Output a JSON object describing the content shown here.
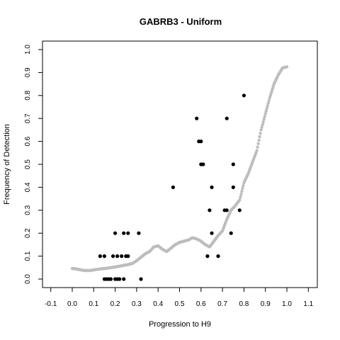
{
  "chart_data": {
    "type": "scatter",
    "title": "GABRB3 - Uniform",
    "xlabel": "Progression to H9",
    "ylabel": "Frequency of Detection",
    "xlim": [
      -0.1,
      1.1
    ],
    "ylim": [
      0.0,
      1.0
    ],
    "x_ticks": [
      "-0.1",
      "0.0",
      "0.1",
      "0.2",
      "0.3",
      "0.4",
      "0.5",
      "0.6",
      "0.7",
      "0.8",
      "0.9",
      "1.0",
      "1.1"
    ],
    "y_ticks": [
      "0.0",
      "0.1",
      "0.2",
      "0.3",
      "0.4",
      "0.5",
      "0.6",
      "0.7",
      "0.8",
      "0.9",
      "1.0"
    ],
    "grid": false,
    "series": [
      {
        "color": "#bdbdbd",
        "marker": "small-circle",
        "points": [
          [
            0.0,
            0.046
          ],
          [
            0.02,
            0.044
          ],
          [
            0.04,
            0.04
          ],
          [
            0.06,
            0.037
          ],
          [
            0.08,
            0.037
          ],
          [
            0.1,
            0.04
          ],
          [
            0.12,
            0.043
          ],
          [
            0.14,
            0.045
          ],
          [
            0.16,
            0.047
          ],
          [
            0.18,
            0.05
          ],
          [
            0.2,
            0.053
          ],
          [
            0.22,
            0.056
          ],
          [
            0.24,
            0.06
          ],
          [
            0.26,
            0.063
          ],
          [
            0.28,
            0.068
          ],
          [
            0.3,
            0.08
          ],
          [
            0.32,
            0.095
          ],
          [
            0.34,
            0.11
          ],
          [
            0.36,
            0.12
          ],
          [
            0.38,
            0.14
          ],
          [
            0.4,
            0.145
          ],
          [
            0.42,
            0.13
          ],
          [
            0.44,
            0.12
          ],
          [
            0.46,
            0.135
          ],
          [
            0.48,
            0.15
          ],
          [
            0.5,
            0.16
          ],
          [
            0.52,
            0.165
          ],
          [
            0.54,
            0.17
          ],
          [
            0.56,
            0.18
          ],
          [
            0.58,
            0.175
          ],
          [
            0.6,
            0.165
          ],
          [
            0.62,
            0.15
          ],
          [
            0.64,
            0.14
          ],
          [
            0.66,
            0.165
          ],
          [
            0.68,
            0.19
          ],
          [
            0.7,
            0.21
          ],
          [
            0.72,
            0.26
          ],
          [
            0.74,
            0.3
          ],
          [
            0.76,
            0.32
          ],
          [
            0.78,
            0.345
          ],
          [
            0.8,
            0.42
          ],
          [
            0.82,
            0.46
          ],
          [
            0.84,
            0.51
          ],
          [
            0.86,
            0.56
          ],
          [
            0.88,
            0.65
          ],
          [
            0.9,
            0.72
          ],
          [
            0.92,
            0.79
          ],
          [
            0.94,
            0.85
          ],
          [
            0.96,
            0.89
          ],
          [
            0.98,
            0.92
          ],
          [
            1.0,
            0.925
          ]
        ]
      },
      {
        "color": "#000000",
        "marker": "filled-circle",
        "points": [
          [
            0.13,
            0.1
          ],
          [
            0.15,
            0.1
          ],
          [
            0.15,
            0.0
          ],
          [
            0.16,
            0.0
          ],
          [
            0.17,
            0.0
          ],
          [
            0.18,
            0.0
          ],
          [
            0.19,
            0.1
          ],
          [
            0.2,
            0.2
          ],
          [
            0.2,
            0.0
          ],
          [
            0.21,
            0.1
          ],
          [
            0.21,
            0.0
          ],
          [
            0.22,
            0.0
          ],
          [
            0.23,
            0.1
          ],
          [
            0.24,
            0.2
          ],
          [
            0.24,
            0.0
          ],
          [
            0.25,
            0.1
          ],
          [
            0.26,
            0.1
          ],
          [
            0.26,
            0.2
          ],
          [
            0.31,
            0.2
          ],
          [
            0.32,
            0.0
          ],
          [
            0.47,
            0.4
          ],
          [
            0.58,
            0.7
          ],
          [
            0.59,
            0.6
          ],
          [
            0.6,
            0.6
          ],
          [
            0.6,
            0.5
          ],
          [
            0.61,
            0.5
          ],
          [
            0.63,
            0.1
          ],
          [
            0.64,
            0.3
          ],
          [
            0.65,
            0.2
          ],
          [
            0.65,
            0.4
          ],
          [
            0.68,
            0.1
          ],
          [
            0.71,
            0.3
          ],
          [
            0.72,
            0.7
          ],
          [
            0.72,
            0.3
          ],
          [
            0.74,
            0.2
          ],
          [
            0.75,
            0.4
          ],
          [
            0.75,
            0.5
          ],
          [
            0.78,
            0.3
          ],
          [
            0.8,
            0.8
          ]
        ]
      }
    ]
  }
}
